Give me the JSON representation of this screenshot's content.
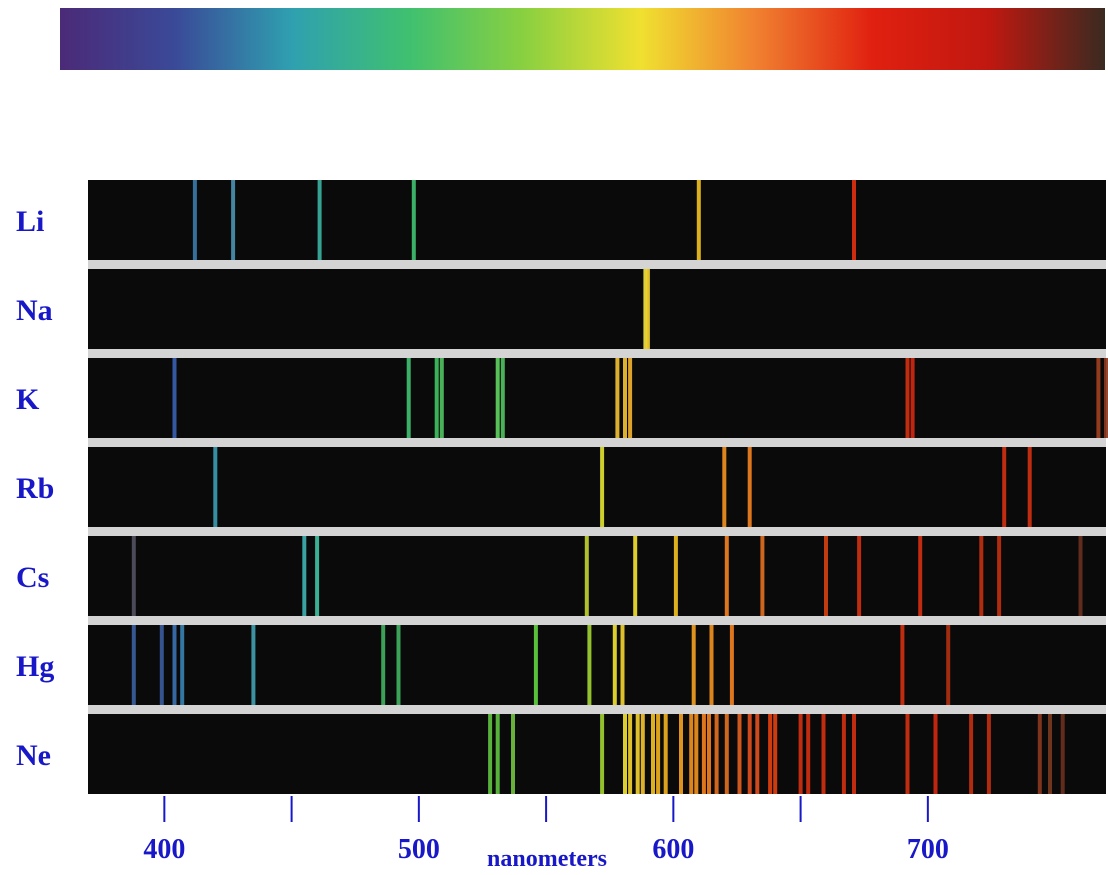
{
  "chart_data": {
    "type": "emission-spectra",
    "xlabel": "nanometers",
    "xlim": [
      370,
      770
    ],
    "x_ticks": [
      {
        "value": 400,
        "label": "400"
      },
      {
        "value": 450,
        "label": ""
      },
      {
        "value": 500,
        "label": "500"
      },
      {
        "value": 550,
        "label": ""
      },
      {
        "value": 600,
        "label": "600"
      },
      {
        "value": 650,
        "label": ""
      },
      {
        "value": 700,
        "label": "700"
      }
    ],
    "spectrum_bar": {
      "gradient_colors": [
        "#4b2a78",
        "#3a4a98",
        "#2fa0b0",
        "#3fc070",
        "#8ad040",
        "#f0e030",
        "#f08030",
        "#e02010",
        "#c01810",
        "#3a2a20"
      ]
    },
    "elements": [
      {
        "name": "Li",
        "lines": [
          {
            "wl": 412,
            "color": "#3a78a8"
          },
          {
            "wl": 427,
            "color": "#4a90b0"
          },
          {
            "wl": 461,
            "color": "#3ab0a0"
          },
          {
            "wl": 498,
            "color": "#40c070"
          },
          {
            "wl": 610,
            "color": "#f0c020"
          },
          {
            "wl": 671,
            "color": "#e03010"
          }
        ]
      },
      {
        "name": "Na",
        "lines": [
          {
            "wl": 589,
            "color": "#f0e040"
          },
          {
            "wl": 590,
            "color": "#f0d030"
          }
        ]
      },
      {
        "name": "K",
        "lines": [
          {
            "wl": 404,
            "color": "#3a60b0"
          },
          {
            "wl": 496,
            "color": "#40c070"
          },
          {
            "wl": 507,
            "color": "#40c060"
          },
          {
            "wl": 509,
            "color": "#50c060"
          },
          {
            "wl": 531,
            "color": "#60d060"
          },
          {
            "wl": 533,
            "color": "#50c060"
          },
          {
            "wl": 578,
            "color": "#f0c030"
          },
          {
            "wl": 581,
            "color": "#f0c030"
          },
          {
            "wl": 583,
            "color": "#f0b030"
          },
          {
            "wl": 692,
            "color": "#d03010"
          },
          {
            "wl": 694,
            "color": "#d02810"
          },
          {
            "wl": 767,
            "color": "#a04020"
          },
          {
            "wl": 770,
            "color": "#8a3a20"
          }
        ]
      },
      {
        "name": "Rb",
        "lines": [
          {
            "wl": 420,
            "color": "#3a9ab0"
          },
          {
            "wl": 572,
            "color": "#e0e030"
          },
          {
            "wl": 620,
            "color": "#f09020"
          },
          {
            "wl": 630,
            "color": "#f08020"
          },
          {
            "wl": 730,
            "color": "#d03010"
          },
          {
            "wl": 740,
            "color": "#d03010"
          }
        ]
      },
      {
        "name": "Cs",
        "lines": [
          {
            "wl": 388,
            "color": "#505060"
          },
          {
            "wl": 455,
            "color": "#40b0b0"
          },
          {
            "wl": 460,
            "color": "#40c0a0"
          },
          {
            "wl": 566,
            "color": "#c0d030"
          },
          {
            "wl": 585,
            "color": "#f0e030"
          },
          {
            "wl": 601,
            "color": "#f0c020"
          },
          {
            "wl": 621,
            "color": "#f08020"
          },
          {
            "wl": 635,
            "color": "#e07020"
          },
          {
            "wl": 660,
            "color": "#d04010"
          },
          {
            "wl": 673,
            "color": "#d03010"
          },
          {
            "wl": 697,
            "color": "#d03010"
          },
          {
            "wl": 721,
            "color": "#c03010"
          },
          {
            "wl": 728,
            "color": "#c03010"
          },
          {
            "wl": 760,
            "color": "#6a3020"
          }
        ]
      },
      {
        "name": "Hg",
        "lines": [
          {
            "wl": 388,
            "color": "#3a60a0"
          },
          {
            "wl": 399,
            "color": "#3a5a9a"
          },
          {
            "wl": 404,
            "color": "#3a70b0"
          },
          {
            "wl": 407,
            "color": "#3a80b0"
          },
          {
            "wl": 435,
            "color": "#40a0b0"
          },
          {
            "wl": 486,
            "color": "#40b060"
          },
          {
            "wl": 492,
            "color": "#40b060"
          },
          {
            "wl": 546,
            "color": "#60d040"
          },
          {
            "wl": 567,
            "color": "#a0d030"
          },
          {
            "wl": 577,
            "color": "#f0e030"
          },
          {
            "wl": 580,
            "color": "#f0d030"
          },
          {
            "wl": 608,
            "color": "#f0a020"
          },
          {
            "wl": 615,
            "color": "#f09020"
          },
          {
            "wl": 623,
            "color": "#f08020"
          },
          {
            "wl": 690,
            "color": "#d03010"
          },
          {
            "wl": 708,
            "color": "#b03010"
          }
        ]
      },
      {
        "name": "Ne",
        "lines": [
          {
            "wl": 528,
            "color": "#60c040"
          },
          {
            "wl": 531,
            "color": "#60c040"
          },
          {
            "wl": 537,
            "color": "#70c040"
          },
          {
            "wl": 572,
            "color": "#a0d030"
          },
          {
            "wl": 581,
            "color": "#f0e030"
          },
          {
            "wl": 583,
            "color": "#f0d030"
          },
          {
            "wl": 586,
            "color": "#f0d030"
          },
          {
            "wl": 588,
            "color": "#f0c030"
          },
          {
            "wl": 592,
            "color": "#f0c020"
          },
          {
            "wl": 594,
            "color": "#f0b020"
          },
          {
            "wl": 597,
            "color": "#f0b020"
          },
          {
            "wl": 603,
            "color": "#f0a020"
          },
          {
            "wl": 607,
            "color": "#f09020"
          },
          {
            "wl": 609,
            "color": "#f09020"
          },
          {
            "wl": 612,
            "color": "#f08020"
          },
          {
            "wl": 614,
            "color": "#f08020"
          },
          {
            "wl": 617,
            "color": "#e07020"
          },
          {
            "wl": 621,
            "color": "#e07020"
          },
          {
            "wl": 626,
            "color": "#e06020"
          },
          {
            "wl": 630,
            "color": "#e05020"
          },
          {
            "wl": 633,
            "color": "#e05020"
          },
          {
            "wl": 638,
            "color": "#e04010"
          },
          {
            "wl": 640,
            "color": "#e04010"
          },
          {
            "wl": 650,
            "color": "#d03010"
          },
          {
            "wl": 653,
            "color": "#d03010"
          },
          {
            "wl": 659,
            "color": "#d03010"
          },
          {
            "wl": 667,
            "color": "#d03010"
          },
          {
            "wl": 671,
            "color": "#d03010"
          },
          {
            "wl": 692,
            "color": "#d03010"
          },
          {
            "wl": 703,
            "color": "#d02810"
          },
          {
            "wl": 717,
            "color": "#c03010"
          },
          {
            "wl": 724,
            "color": "#c03010"
          },
          {
            "wl": 744,
            "color": "#8a3a20"
          },
          {
            "wl": 748,
            "color": "#7a3a20"
          },
          {
            "wl": 753,
            "color": "#6a3020"
          }
        ]
      }
    ]
  }
}
